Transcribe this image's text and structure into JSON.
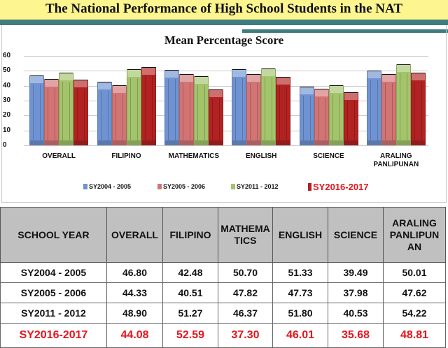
{
  "header": {
    "title": "The National Performance of High School Students in the NAT"
  },
  "chart": {
    "title": "Mean Percentage Score",
    "y_ticks": [
      "60",
      "50",
      "40",
      "30",
      "20",
      "10",
      "0"
    ],
    "categories": [
      "OVERALL",
      "FILIPINO",
      "MATHEMATICS",
      "ENGLISH",
      "SCIENCE",
      "ARALING PANLIPUNAN"
    ],
    "category_lines": [
      [
        "OVERALL"
      ],
      [
        "FILIPINO"
      ],
      [
        "MATHEMATICS"
      ],
      [
        "ENGLISH"
      ],
      [
        "SCIENCE"
      ],
      [
        "ARALING",
        "PANLIPUNAN"
      ]
    ],
    "legend": [
      {
        "label": "SY2004 - 2005",
        "color": "#6f93d2"
      },
      {
        "label": "SY2005 - 2006",
        "color": "#d27474"
      },
      {
        "label": "SY2011 - 2012",
        "color": "#a3c46b"
      },
      {
        "label": "SY2016-2017",
        "color": "#b22222"
      }
    ]
  },
  "chart_data": {
    "type": "bar",
    "title": "Mean Percentage Score",
    "xlabel": "",
    "ylabel": "",
    "ylim": [
      0,
      60
    ],
    "yticks": [
      0,
      10,
      20,
      30,
      40,
      50,
      60
    ],
    "grid": true,
    "legend_position": "bottom",
    "categories": [
      "OVERALL",
      "FILIPINO",
      "MATHEMATICS",
      "ENGLISH",
      "SCIENCE",
      "ARALING PANLIPUNAN"
    ],
    "series": [
      {
        "name": "SY2004 - 2005",
        "color": "#6f93d2",
        "values": [
          46.8,
          42.48,
          50.7,
          51.33,
          39.49,
          50.01
        ]
      },
      {
        "name": "SY2005 - 2006",
        "color": "#d27474",
        "values": [
          44.33,
          40.51,
          47.82,
          47.73,
          37.98,
          47.62
        ]
      },
      {
        "name": "SY2011 - 2012",
        "color": "#a3c46b",
        "values": [
          48.9,
          51.27,
          46.37,
          51.8,
          40.53,
          54.22
        ]
      },
      {
        "name": "SY2016-2017",
        "color": "#b22222",
        "values": [
          44.08,
          52.59,
          37.3,
          46.01,
          35.68,
          48.81
        ]
      }
    ]
  },
  "table": {
    "headers": [
      "SCHOOL YEAR",
      "OVERALL",
      "FILIPINO",
      "MATHEMATICS",
      "ENGLISH",
      "SCIENCE",
      "ARALING PANLIPUNAN"
    ],
    "header_display": [
      "SCHOOL YEAR",
      "OVERALL",
      "FILIPINO",
      "MATHEMA\nTICS",
      "ENGLISH",
      "SCIENCE",
      "ARALING\nPANLIPUN\nAN"
    ],
    "rows": [
      {
        "year": "SY2004 - 2005",
        "values": [
          "46.80",
          "42.48",
          "50.70",
          "51.33",
          "39.49",
          "50.01"
        ]
      },
      {
        "year": "SY2005 - 2006",
        "values": [
          "44.33",
          "40.51",
          "47.82",
          "47.73",
          "37.98",
          "47.62"
        ]
      },
      {
        "year": "SY2011 - 2012",
        "values": [
          "48.90",
          "51.27",
          "46.37",
          "51.80",
          "40.53",
          "54.22"
        ]
      },
      {
        "year": "SY2016-2017",
        "values": [
          "44.08",
          "52.59",
          "37.30",
          "46.01",
          "35.68",
          "48.81"
        ],
        "highlight": true
      }
    ]
  }
}
